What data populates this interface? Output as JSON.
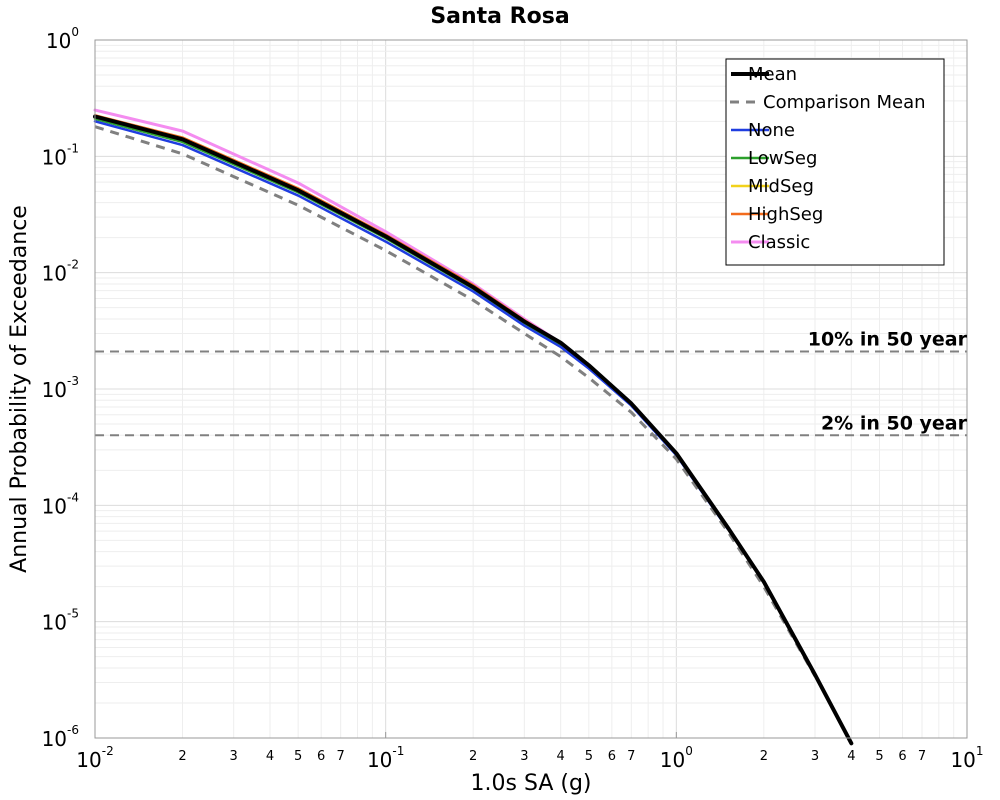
{
  "chart_data": {
    "type": "line",
    "title": "Santa Rosa",
    "xlabel": "1.0s SA (g)",
    "ylabel": "Annual Probability of Exceedance",
    "xscale": "log",
    "yscale": "log",
    "xlim": [
      0.01,
      10
    ],
    "ylim": [
      1e-06,
      1
    ],
    "grid": true,
    "legend_position": "top-right",
    "x_major_ticks": [
      {
        "base": "10",
        "exp": "-2",
        "value": 0.01
      },
      {
        "base": "10",
        "exp": "-1",
        "value": 0.1
      },
      {
        "base": "10",
        "exp": "0",
        "value": 1
      },
      {
        "base": "10",
        "exp": "1",
        "value": 10
      }
    ],
    "x_minor_ticks": [
      {
        "label": "2",
        "value": 0.02
      },
      {
        "label": "3",
        "value": 0.03
      },
      {
        "label": "4",
        "value": 0.04
      },
      {
        "label": "5",
        "value": 0.05
      },
      {
        "label": "6",
        "value": 0.06
      },
      {
        "label": "7",
        "value": 0.07
      },
      {
        "label": "2",
        "value": 0.2
      },
      {
        "label": "3",
        "value": 0.3
      },
      {
        "label": "4",
        "value": 0.4
      },
      {
        "label": "5",
        "value": 0.5
      },
      {
        "label": "6",
        "value": 0.6
      },
      {
        "label": "7",
        "value": 0.7
      },
      {
        "label": "2",
        "value": 2
      },
      {
        "label": "3",
        "value": 3
      },
      {
        "label": "4",
        "value": 4
      },
      {
        "label": "5",
        "value": 5
      },
      {
        "label": "6",
        "value": 6
      },
      {
        "label": "7",
        "value": 7
      }
    ],
    "y_major_ticks": [
      {
        "base": "10",
        "exp": "0",
        "value": 1
      },
      {
        "base": "10",
        "exp": "-1",
        "value": 0.1
      },
      {
        "base": "10",
        "exp": "-2",
        "value": 0.01
      },
      {
        "base": "10",
        "exp": "-3",
        "value": 0.001
      },
      {
        "base": "10",
        "exp": "-4",
        "value": 0.0001
      },
      {
        "base": "10",
        "exp": "-5",
        "value": 1e-05
      },
      {
        "base": "10",
        "exp": "-6",
        "value": 1e-06
      }
    ],
    "reference_lines": [
      {
        "label": "10% in 50 year",
        "y": 0.0021
      },
      {
        "label": "2% in 50 year",
        "y": 0.0004
      }
    ],
    "series": [
      {
        "name": "Mean",
        "color": "#000000",
        "style": "solid",
        "width": 4,
        "x": [
          0.01,
          0.02,
          0.05,
          0.1,
          0.2,
          0.3,
          0.4,
          0.5,
          0.7,
          1.0,
          1.5,
          2.0,
          3.0,
          4.0
        ],
        "y": [
          0.22,
          0.14,
          0.051,
          0.0205,
          0.0075,
          0.0038,
          0.0025,
          0.0016,
          0.00075,
          0.00028,
          6.5e-05,
          2.2e-05,
          3.5e-06,
          9e-07
        ]
      },
      {
        "name": "Comparison Mean",
        "color": "#808080",
        "style": "dashed",
        "width": 3,
        "x": [
          0.01,
          0.02,
          0.05,
          0.1,
          0.2,
          0.3,
          0.4,
          0.5,
          0.7,
          1.0,
          1.5,
          2.0,
          3.0
        ],
        "y": [
          0.18,
          0.105,
          0.038,
          0.0155,
          0.0058,
          0.003,
          0.0019,
          0.00125,
          0.00063,
          0.00025,
          6e-05,
          2e-05,
          3.4e-06
        ]
      },
      {
        "name": "None",
        "color": "#1f3de0",
        "style": "solid",
        "width": 2.5,
        "x": [
          0.01,
          0.02,
          0.05,
          0.1,
          0.2,
          0.3,
          0.4,
          0.5,
          0.7,
          1.0,
          1.5
        ],
        "y": [
          0.2,
          0.125,
          0.046,
          0.0185,
          0.0069,
          0.0035,
          0.0023,
          0.0015,
          0.00072,
          0.00027,
          6.3e-05
        ]
      },
      {
        "name": "LowSeg",
        "color": "#2ca02c",
        "style": "solid",
        "width": 2.5,
        "x": [
          0.01,
          0.02,
          0.05,
          0.1,
          0.2,
          0.3,
          0.4
        ],
        "y": [
          0.21,
          0.133,
          0.049,
          0.0198,
          0.0073,
          0.0037,
          0.0024
        ]
      },
      {
        "name": "MidSeg",
        "color": "#f2d21b",
        "style": "solid",
        "width": 2.5,
        "x": [
          0.01,
          0.02,
          0.05,
          0.1,
          0.2,
          0.3,
          0.4
        ],
        "y": [
          0.215,
          0.137,
          0.05,
          0.0203,
          0.0075,
          0.0038,
          0.0025
        ]
      },
      {
        "name": "HighSeg",
        "color": "#f26b1d",
        "style": "solid",
        "width": 2.5,
        "x": [
          0.01,
          0.02,
          0.05,
          0.1,
          0.2,
          0.3,
          0.4
        ],
        "y": [
          0.225,
          0.145,
          0.053,
          0.0212,
          0.0078,
          0.0039,
          0.0025
        ]
      },
      {
        "name": "Classic",
        "color": "#f48cf0",
        "style": "solid",
        "width": 3,
        "x": [
          0.01,
          0.02,
          0.05,
          0.1,
          0.2,
          0.3,
          0.4
        ],
        "y": [
          0.25,
          0.165,
          0.059,
          0.0225,
          0.008,
          0.004,
          0.0025
        ]
      }
    ]
  }
}
